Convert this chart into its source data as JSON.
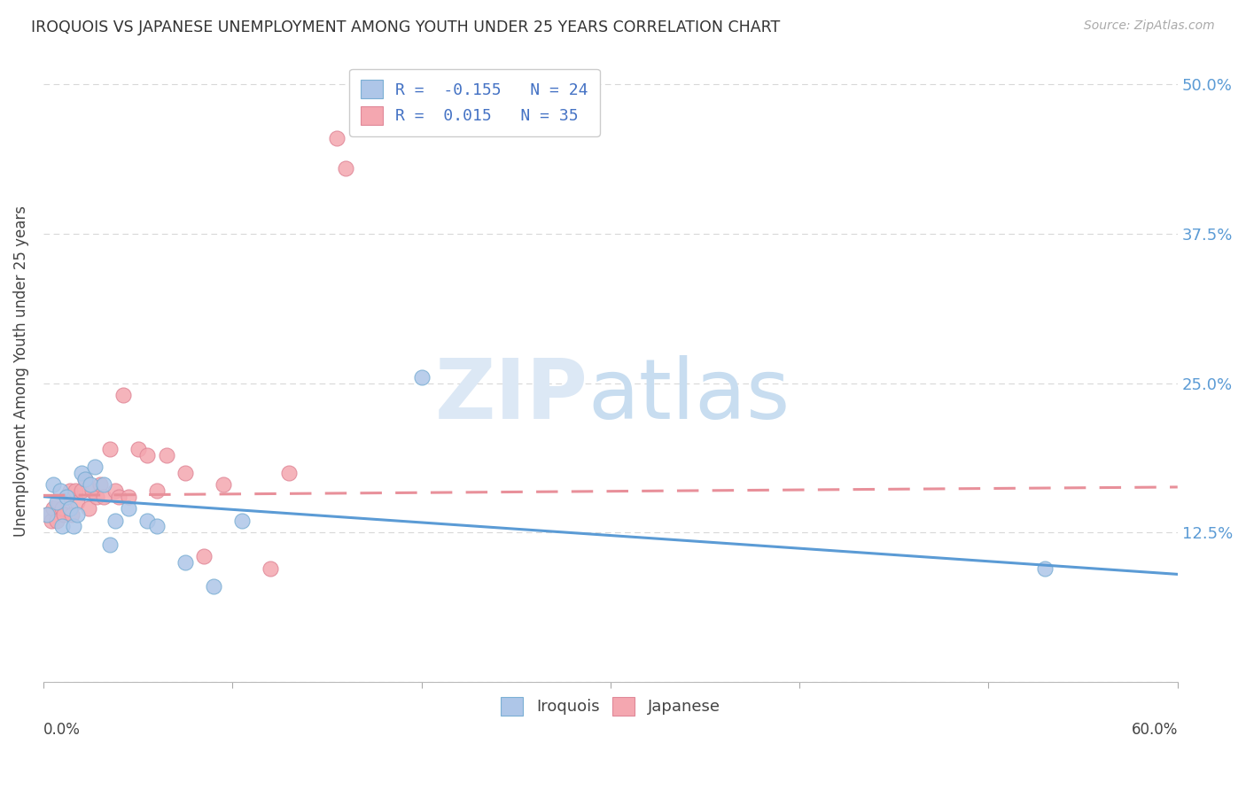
{
  "title": "IROQUOIS VS JAPANESE UNEMPLOYMENT AMONG YOUTH UNDER 25 YEARS CORRELATION CHART",
  "source": "Source: ZipAtlas.com",
  "ylabel": "Unemployment Among Youth under 25 years",
  "right_yticklabels": [
    "",
    "12.5%",
    "25.0%",
    "37.5%",
    "50.0%"
  ],
  "xlim": [
    0.0,
    0.6
  ],
  "ylim": [
    0.0,
    0.52
  ],
  "iroquois_color": "#aec6e8",
  "japanese_color": "#f4a7b0",
  "iroquois_edge_color": "#7bafd4",
  "japanese_edge_color": "#e08898",
  "iroquois_line_color": "#5b9bd5",
  "japanese_line_color": "#e8909a",
  "iroquois_R": -0.155,
  "iroquois_N": 24,
  "japanese_R": 0.015,
  "japanese_N": 35,
  "legend_text_color": "#4472c4",
  "iroquois_x": [
    0.002,
    0.005,
    0.007,
    0.009,
    0.01,
    0.012,
    0.014,
    0.016,
    0.018,
    0.02,
    0.022,
    0.025,
    0.027,
    0.032,
    0.035,
    0.038,
    0.045,
    0.055,
    0.06,
    0.075,
    0.09,
    0.105,
    0.2,
    0.53
  ],
  "iroquois_y": [
    0.14,
    0.165,
    0.15,
    0.16,
    0.13,
    0.155,
    0.145,
    0.13,
    0.14,
    0.175,
    0.17,
    0.165,
    0.18,
    0.165,
    0.115,
    0.135,
    0.145,
    0.135,
    0.13,
    0.1,
    0.08,
    0.135,
    0.255,
    0.095
  ],
  "japanese_x": [
    0.002,
    0.004,
    0.005,
    0.007,
    0.008,
    0.01,
    0.011,
    0.012,
    0.014,
    0.015,
    0.017,
    0.018,
    0.02,
    0.022,
    0.024,
    0.026,
    0.028,
    0.03,
    0.032,
    0.035,
    0.038,
    0.04,
    0.042,
    0.045,
    0.05,
    0.055,
    0.06,
    0.065,
    0.075,
    0.085,
    0.095,
    0.12,
    0.13,
    0.155,
    0.16
  ],
  "japanese_y": [
    0.14,
    0.135,
    0.145,
    0.135,
    0.15,
    0.145,
    0.14,
    0.155,
    0.16,
    0.14,
    0.16,
    0.15,
    0.16,
    0.17,
    0.145,
    0.16,
    0.155,
    0.165,
    0.155,
    0.195,
    0.16,
    0.155,
    0.24,
    0.155,
    0.195,
    0.19,
    0.16,
    0.19,
    0.175,
    0.105,
    0.165,
    0.095,
    0.175,
    0.455,
    0.43
  ],
  "background_color": "#ffffff",
  "grid_color": "#d8d8d8"
}
